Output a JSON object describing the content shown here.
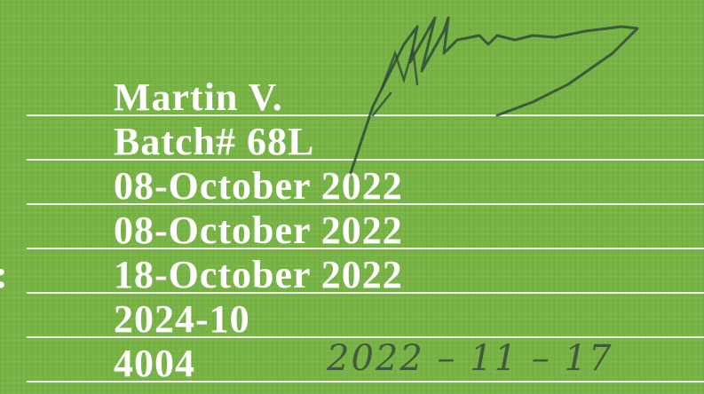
{
  "fields": [
    "Martin V.",
    "Batch# 68L",
    "08-October 2022",
    "08-October 2022",
    "18-October 2022",
    "2024-10",
    "4004"
  ],
  "label_fragment": ":",
  "handwritten_date": "2022 – 11 – 17"
}
